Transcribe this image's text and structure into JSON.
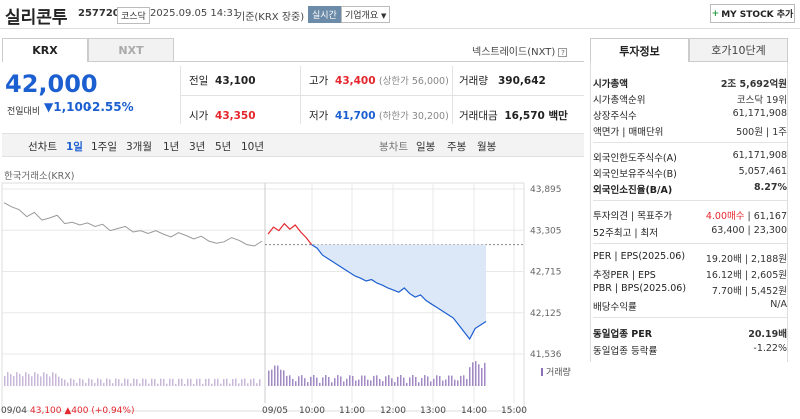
{
  "header": {
    "name": "실리콘투",
    "code": "257720",
    "market": "코스닥",
    "datetime": "2025.09.05 14:31",
    "basis": "기준(KRX 장중)",
    "realtime": "실시간",
    "company_info": "기업개요",
    "mystock_button": "MY STOCK 추가"
  },
  "exchange_tabs": [
    "KRX",
    "NXT"
  ],
  "nxt_note": "넥스트레이드(NXT)",
  "price": {
    "current": "42,000",
    "change_label": "전일대비",
    "change": "1,100",
    "change_pct": "-2.55%"
  },
  "quote": {
    "prev_label": "전일",
    "prev": "43,100",
    "high_label": "고가",
    "high": "43,400",
    "upper_limit": "(상한가 56,000)",
    "volume_label": "거래량",
    "volume": "390,642",
    "open_label": "시가",
    "open": "43,350",
    "low_label": "저가",
    "low": "41,700",
    "lower_limit": "(하한가 30,200)",
    "amount_label": "거래대금",
    "amount": "16,570 백만"
  },
  "chart_controls": {
    "line_label": "선차트",
    "periods": [
      "1일",
      "1주일",
      "3개월",
      "1년",
      "3년",
      "5년",
      "10년"
    ],
    "candle_label": "봉차트",
    "candles": [
      "일봉",
      "주봉",
      "월봉"
    ]
  },
  "chart_source": "한국거래소(KRX)",
  "chart_data": {
    "type": "line",
    "y_ticks": [
      "43,895",
      "43,305",
      "42,715",
      "42,125",
      "41,536"
    ],
    "ylim": [
      41536,
      43895
    ],
    "x_labels": [
      "09/04",
      "09/05",
      "10:00",
      "11:00",
      "12:00",
      "13:00",
      "14:00",
      "15:00"
    ],
    "reference_line": 43100,
    "prev_day_close_label": "09/04",
    "prev_day_close": "43,100",
    "prev_day_change": "400",
    "prev_day_change_pct": "(+0.94%)",
    "volume_legend": "거래량",
    "series": [
      {
        "values": [
          43700,
          43640,
          43600,
          43500,
          43560,
          43450,
          43480,
          43520,
          43400,
          43420,
          43380,
          43410,
          43360,
          43390,
          43300,
          43330,
          43360,
          43280,
          43300,
          43260,
          43300,
          43250,
          43210,
          43270,
          43230,
          43180,
          43220,
          43150,
          43120,
          43140,
          43200,
          43160,
          43100,
          43080,
          43150
        ],
        "color": "#999999"
      },
      {
        "values": [
          43250,
          43350,
          43300,
          43400,
          43320,
          43380,
          43280,
          43200,
          43100,
          43050,
          42950,
          42900,
          42850,
          42800,
          42750,
          42700,
          42650,
          42620,
          42580,
          42600,
          42550,
          42520,
          42480,
          42450,
          42420,
          42480,
          42400,
          42350,
          42380,
          42300,
          42250,
          42200,
          42150,
          42100,
          42050,
          41950,
          41850,
          41750,
          41900,
          41950,
          42000
        ],
        "color": "#1c5fd0"
      }
    ]
  },
  "side_tabs": [
    "투자정보",
    "호가10단계"
  ],
  "invest": {
    "market_cap_label": "시가총액",
    "market_cap": "2조 5,692억원",
    "rank_label": "시가총액순위",
    "rank": "코스닥 19위",
    "shares_label": "상장주식수",
    "shares": "61,171,908",
    "par_label": "액면가 | 매매단위",
    "par": "500원 | 1주",
    "foreign_limit_label": "외국인한도주식수(A)",
    "foreign_limit": "61,171,908",
    "foreign_hold_label": "외국인보유주식수(B)",
    "foreign_hold": "5,057,461",
    "foreign_ratio_label": "외국인소진율(B/A)",
    "foreign_ratio": "8.27%",
    "opinion_label": "투자의견 | 목표주가",
    "opinion": "4.00매수",
    "target": "61,167",
    "range52_label": "52주최고 | 최저",
    "range52": "63,400 | 23,300",
    "per_label": "PER | EPS(2025.06)",
    "per": "19.20배 | 2,188원",
    "est_per_label": "추정PER | EPS",
    "est_per": "16.12배 | 2,605원",
    "pbr_label": "PBR | BPS(2025.06)",
    "pbr": "7.70배 | 5,452원",
    "dividend_label": "배당수익률",
    "dividend": "N/A",
    "industry_per_label": "동일업종 PER",
    "industry_per": "20.19배",
    "industry_change_label": "동일업종 등락률",
    "industry_change": "-1.22%"
  }
}
